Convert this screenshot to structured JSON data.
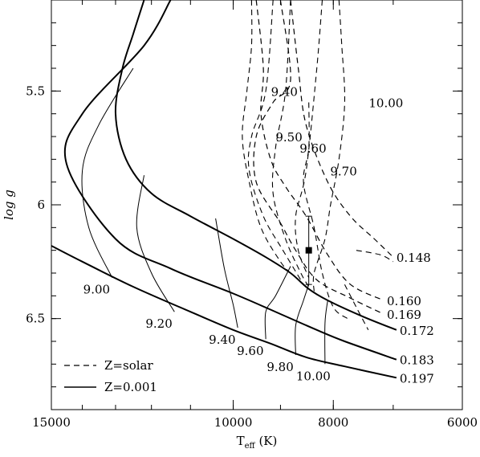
{
  "chart_data": {
    "type": "line",
    "xlabel": "T",
    "xlabel_sub": "eff",
    "xlabel_unit": " (K)",
    "ylabel": "log  g",
    "x_scale": "log",
    "x_reversed": true,
    "y_reversed": true,
    "xlim": [
      15000,
      6000
    ],
    "ylim": [
      5.1,
      6.9
    ],
    "xticks": [
      {
        "value": 15000,
        "label": "15000"
      },
      {
        "value": 10000,
        "label": "10000"
      },
      {
        "value": 8000,
        "label": "8000"
      },
      {
        "value": 6000,
        "label": "6000"
      }
    ],
    "yticks": [
      {
        "value": 5.5,
        "label": "5.5"
      },
      {
        "value": 6,
        "label": "6"
      },
      {
        "value": 6.5,
        "label": "6.5"
      }
    ],
    "legend": {
      "position": "bottom-left",
      "entries": [
        {
          "label": "Z=solar",
          "style": "dashed"
        },
        {
          "label": "Z=0.001",
          "style": "solid"
        }
      ]
    },
    "observation": {
      "teff": 8450,
      "logg": 6.2,
      "logg_upper": 6.05,
      "logg_lower": 6.35
    },
    "tracks_solid": [
      {
        "name": "0.172",
        "points": [
          [
            12200,
            5.1
          ],
          [
            12500,
            5.25
          ],
          [
            12800,
            5.4
          ],
          [
            13000,
            5.6
          ],
          [
            12700,
            5.8
          ],
          [
            12000,
            5.95
          ],
          [
            11000,
            6.05
          ],
          [
            10000,
            6.15
          ],
          [
            9300,
            6.23
          ],
          [
            8800,
            6.3
          ],
          [
            8450,
            6.37
          ],
          [
            8100,
            6.42
          ],
          [
            7500,
            6.49
          ],
          [
            6950,
            6.55
          ]
        ]
      },
      {
        "name": "0.183",
        "points": [
          [
            11500,
            5.1
          ],
          [
            12200,
            5.3
          ],
          [
            14000,
            5.6
          ],
          [
            14500,
            5.82
          ],
          [
            13000,
            6.15
          ],
          [
            11500,
            6.28
          ],
          [
            10000,
            6.39
          ],
          [
            9000,
            6.48
          ],
          [
            8300,
            6.55
          ],
          [
            7800,
            6.6
          ],
          [
            6950,
            6.68
          ]
        ]
      },
      {
        "name": "0.197",
        "points": [
          [
            15000,
            6.18
          ],
          [
            14000,
            6.25
          ],
          [
            12500,
            6.36
          ],
          [
            11000,
            6.47
          ],
          [
            10000,
            6.55
          ],
          [
            9200,
            6.61
          ],
          [
            8500,
            6.67
          ],
          [
            7800,
            6.71
          ],
          [
            6950,
            6.76
          ]
        ]
      }
    ],
    "isochrones_solid": [
      {
        "label": "9.00",
        "points": [
          [
            12500,
            5.4
          ],
          [
            13500,
            5.65
          ],
          [
            14000,
            5.85
          ],
          [
            13800,
            6.1
          ],
          [
            13100,
            6.32
          ]
        ]
      },
      {
        "label": "9.20",
        "points": [
          [
            12200,
            5.87
          ],
          [
            12400,
            6.1
          ],
          [
            12000,
            6.3
          ],
          [
            11400,
            6.47
          ]
        ]
      },
      {
        "label": "9.40",
        "points": [
          [
            10400,
            6.06
          ],
          [
            10200,
            6.28
          ],
          [
            10000,
            6.44
          ],
          [
            9900,
            6.54
          ]
        ]
      },
      {
        "label": "9.60",
        "points": [
          [
            8800,
            6.27
          ],
          [
            9100,
            6.4
          ],
          [
            9300,
            6.47
          ],
          [
            9300,
            6.59
          ]
        ]
      },
      {
        "label": "9.80",
        "points": [
          [
            8450,
            6.35
          ],
          [
            8550,
            6.42
          ],
          [
            8700,
            6.53
          ],
          [
            8700,
            6.66
          ]
        ]
      },
      {
        "label": "10.00",
        "points": [
          [
            8100,
            6.42
          ],
          [
            8150,
            6.52
          ],
          [
            8150,
            6.7
          ]
        ]
      }
    ],
    "tracks_dashed": [
      {
        "name": "0.148",
        "points": [
          [
            8800,
            5.1
          ],
          [
            8650,
            5.4
          ],
          [
            8500,
            5.65
          ],
          [
            8100,
            5.9
          ],
          [
            7700,
            6.05
          ],
          [
            7300,
            6.15
          ],
          [
            7000,
            6.23
          ]
        ]
      },
      {
        "name": "0.160",
        "points": [
          [
            9500,
            5.1
          ],
          [
            9350,
            5.4
          ],
          [
            9400,
            5.6
          ],
          [
            9200,
            5.8
          ],
          [
            8900,
            5.92
          ],
          [
            8500,
            6.05
          ],
          [
            8100,
            6.22
          ],
          [
            7700,
            6.35
          ],
          [
            7150,
            6.42
          ]
        ]
      },
      {
        "name": "0.169",
        "points": [
          [
            9000,
            5.1
          ],
          [
            8800,
            5.45
          ],
          [
            9150,
            5.55
          ],
          [
            9500,
            5.7
          ],
          [
            9500,
            5.9
          ],
          [
            9000,
            6.08
          ],
          [
            8700,
            6.2
          ],
          [
            8300,
            6.33
          ],
          [
            7700,
            6.41
          ],
          [
            7150,
            6.48
          ]
        ]
      }
    ],
    "isochrones_dashed": [
      {
        "label": "9.40",
        "points": [
          [
            9600,
            5.1
          ],
          [
            9600,
            5.3
          ],
          [
            9700,
            5.5
          ],
          [
            9800,
            5.7
          ],
          [
            9650,
            5.9
          ],
          [
            9400,
            6.1
          ],
          [
            9000,
            6.25
          ],
          [
            8800,
            6.3
          ]
        ]
      },
      {
        "label": "9.50",
        "points": [
          [
            9150,
            5.1
          ],
          [
            9300,
            5.5
          ],
          [
            9600,
            5.7
          ],
          [
            9650,
            5.85
          ],
          [
            9350,
            6.05
          ],
          [
            8950,
            6.2
          ],
          [
            8550,
            6.35
          ]
        ]
      },
      {
        "label": "9.60",
        "points": [
          [
            8800,
            5.1
          ],
          [
            8900,
            5.5
          ],
          [
            9100,
            5.75
          ],
          [
            9150,
            5.95
          ],
          [
            8900,
            6.15
          ],
          [
            8600,
            6.3
          ],
          [
            8450,
            6.36
          ]
        ]
      },
      {
        "label": "9.70",
        "points": [
          [
            8200,
            5.1
          ],
          [
            8300,
            5.4
          ],
          [
            8500,
            5.85
          ],
          [
            8700,
            6.05
          ],
          [
            8650,
            6.2
          ],
          [
            8450,
            6.32
          ]
        ]
      },
      {
        "label": "10.00",
        "points": [
          [
            7900,
            5.1
          ],
          [
            7850,
            5.3
          ],
          [
            7800,
            5.55
          ],
          [
            7900,
            5.8
          ],
          [
            8050,
            6.0
          ],
          [
            8150,
            6.15
          ],
          [
            8350,
            6.3
          ],
          [
            8350,
            6.38
          ]
        ]
      }
    ],
    "dashed_curve_2": [
      [
        8450,
        5.55
      ],
      [
        8450,
        5.75
      ],
      [
        8550,
        5.9
      ],
      [
        8350,
        6.1
      ],
      [
        8200,
        6.3
      ],
      [
        8000,
        6.45
      ],
      [
        7750,
        6.5
      ]
    ],
    "dashed_curve_3": [
      [
        7600,
        6.2
      ],
      [
        7200,
        6.22
      ],
      [
        7000,
        6.25
      ]
    ],
    "dashed_curve_4": [
      [
        7800,
        6.35
      ],
      [
        7600,
        6.45
      ],
      [
        7400,
        6.55
      ]
    ]
  }
}
